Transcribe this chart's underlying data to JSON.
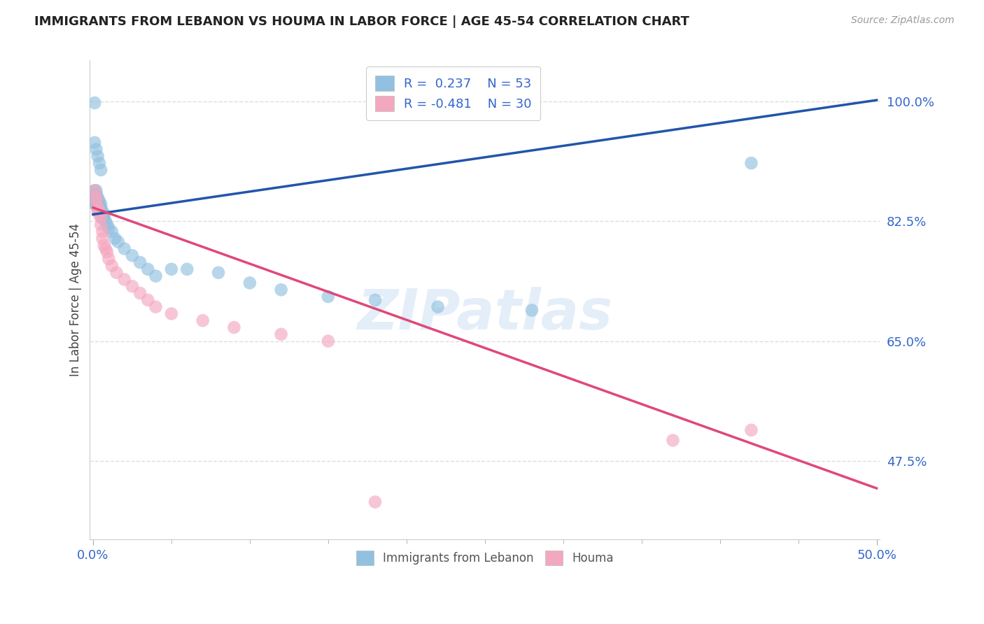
{
  "title": "IMMIGRANTS FROM LEBANON VS HOUMA IN LABOR FORCE | AGE 45-54 CORRELATION CHART",
  "source": "Source: ZipAtlas.com",
  "ylabel": "In Labor Force | Age 45-54",
  "xlim": [
    -0.002,
    0.502
  ],
  "ylim": [
    0.36,
    1.06
  ],
  "xtick_vals": [
    0.0,
    0.5
  ],
  "xticklabels": [
    "0.0%",
    "50.0%"
  ],
  "xtick_minor_vals": [
    0.05,
    0.1,
    0.15,
    0.2,
    0.25,
    0.3,
    0.35,
    0.4,
    0.45
  ],
  "yticks": [
    0.475,
    0.65,
    0.825,
    1.0
  ],
  "yticklabels": [
    "47.5%",
    "65.0%",
    "82.5%",
    "100.0%"
  ],
  "blue_color": "#92C0E0",
  "pink_color": "#F4A8C0",
  "blue_line_color": "#2255AA",
  "pink_line_color": "#E04878",
  "legend_R_blue": "0.237",
  "legend_N_blue": "53",
  "legend_R_pink": "-0.481",
  "legend_N_pink": "30",
  "legend_label_blue": "Immigrants from Lebanon",
  "legend_label_pink": "Houma",
  "blue_line_x0": 0.0,
  "blue_line_x1": 0.5,
  "blue_line_y0": 0.835,
  "blue_line_y1": 1.002,
  "pink_line_x0": 0.0,
  "pink_line_x1": 0.5,
  "pink_line_y0": 0.845,
  "pink_line_y1": 0.435,
  "watermark": "ZIPatlas",
  "background_color": "#FFFFFF",
  "grid_color": "#DEDEDE",
  "blue_x": [
    0.001,
    0.001,
    0.001,
    0.001,
    0.001,
    0.002,
    0.002,
    0.002,
    0.002,
    0.002,
    0.003,
    0.003,
    0.003,
    0.003,
    0.004,
    0.004,
    0.004,
    0.004,
    0.005,
    0.005,
    0.005,
    0.006,
    0.006,
    0.006,
    0.007,
    0.007,
    0.008,
    0.009,
    0.01,
    0.012,
    0.014,
    0.016,
    0.02,
    0.025,
    0.03,
    0.035,
    0.04,
    0.05,
    0.06,
    0.08,
    0.1,
    0.12,
    0.15,
    0.18,
    0.22,
    0.28,
    0.42,
    0.001,
    0.001,
    0.002,
    0.003,
    0.004,
    0.005
  ],
  "blue_y": [
    0.87,
    0.86,
    0.86,
    0.855,
    0.85,
    0.87,
    0.865,
    0.86,
    0.855,
    0.85,
    0.86,
    0.855,
    0.85,
    0.845,
    0.855,
    0.85,
    0.845,
    0.84,
    0.85,
    0.845,
    0.84,
    0.84,
    0.835,
    0.83,
    0.835,
    0.83,
    0.825,
    0.82,
    0.815,
    0.81,
    0.8,
    0.795,
    0.785,
    0.775,
    0.765,
    0.755,
    0.745,
    0.755,
    0.755,
    0.75,
    0.735,
    0.725,
    0.715,
    0.71,
    0.7,
    0.695,
    0.91,
    0.998,
    0.94,
    0.93,
    0.92,
    0.91,
    0.9
  ],
  "pink_x": [
    0.001,
    0.002,
    0.002,
    0.003,
    0.003,
    0.004,
    0.004,
    0.005,
    0.005,
    0.006,
    0.006,
    0.007,
    0.008,
    0.009,
    0.01,
    0.012,
    0.015,
    0.02,
    0.025,
    0.03,
    0.035,
    0.04,
    0.05,
    0.07,
    0.09,
    0.12,
    0.15,
    0.18,
    0.37,
    0.42
  ],
  "pink_y": [
    0.87,
    0.86,
    0.855,
    0.845,
    0.84,
    0.84,
    0.835,
    0.83,
    0.82,
    0.81,
    0.8,
    0.79,
    0.785,
    0.78,
    0.77,
    0.76,
    0.75,
    0.74,
    0.73,
    0.72,
    0.71,
    0.7,
    0.69,
    0.68,
    0.67,
    0.66,
    0.65,
    0.415,
    0.505,
    0.52
  ]
}
